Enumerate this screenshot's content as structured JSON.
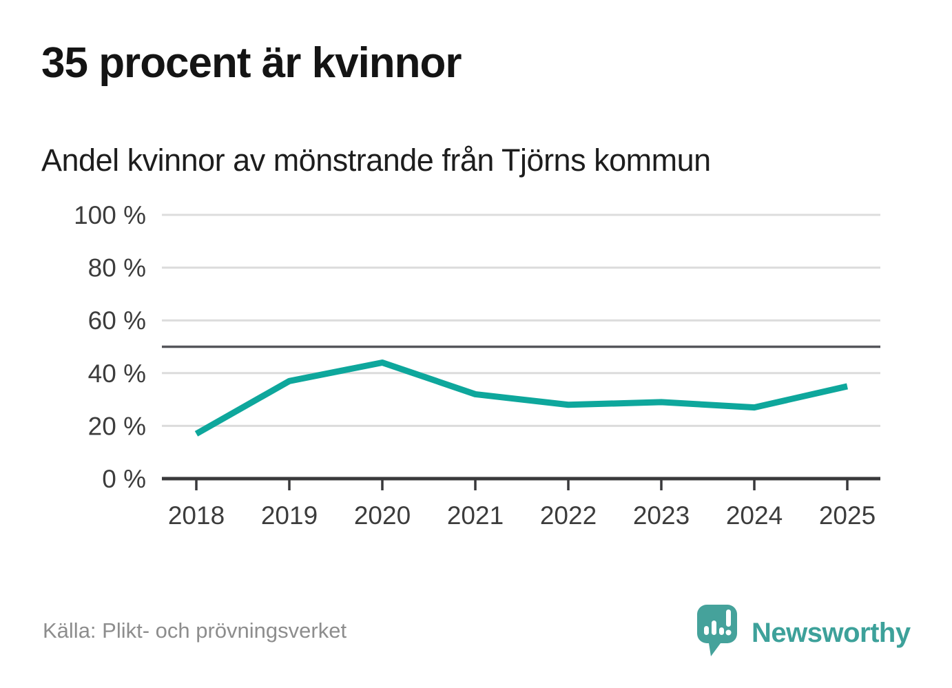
{
  "header": {
    "title": "35 procent är kvinnor",
    "subtitle": "Andel kvinnor av mönstrande från Tjörns kommun"
  },
  "footer": {
    "source": "Källa: Plikt- och prövningsverket",
    "brand": "Newsworthy"
  },
  "colors": {
    "line": "#0ea79c",
    "grid": "#dcdcdc",
    "axis": "#39393b",
    "reference_line": "#55565a",
    "tick_label": "#3c3c3c",
    "brand_teal": "#45a29b",
    "title_text": "#141414",
    "source_text": "#8d8d8d"
  },
  "chart_data": {
    "type": "line",
    "title": "35 procent är kvinnor",
    "subtitle": "Andel kvinnor av mönstrande från Tjörns kommun",
    "source": "Källa: Plikt- och prövningsverket",
    "categories": [
      "2018",
      "2019",
      "2020",
      "2021",
      "2022",
      "2023",
      "2024",
      "2025"
    ],
    "series": [
      {
        "name": "Andel kvinnor av mönstrande",
        "values": [
          17,
          37,
          44,
          32,
          28,
          29,
          27,
          35
        ]
      }
    ],
    "unit": "%",
    "xlabel": "",
    "ylabel": "",
    "ylim": [
      0,
      100
    ],
    "yticks": [
      0,
      20,
      40,
      60,
      80,
      100
    ],
    "ytick_format": "{v} %",
    "reference_line": 50,
    "grid": true,
    "legend": "none"
  }
}
